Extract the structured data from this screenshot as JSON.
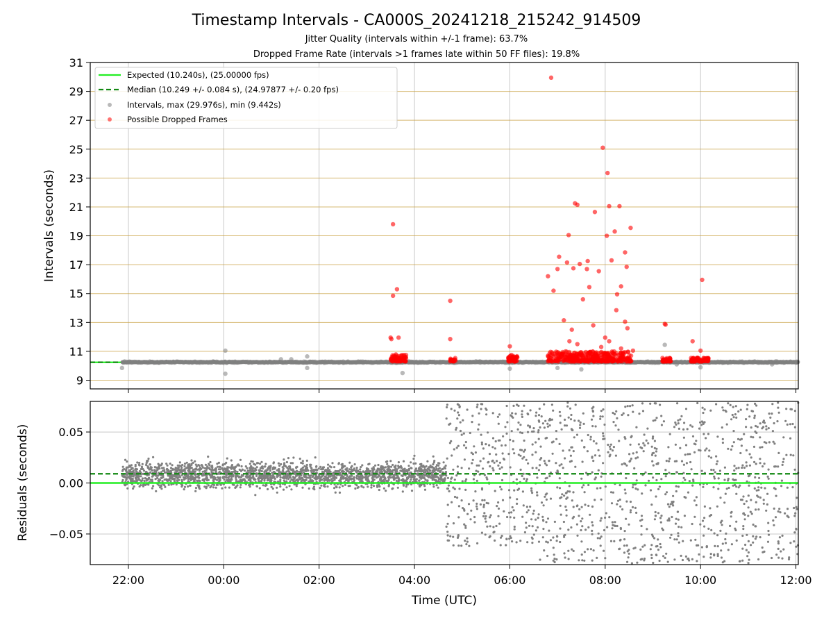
{
  "chart_data": [
    {
      "type": "scatter",
      "title": "Timestamp Intervals - CA000S_20241218_215242_914509",
      "subtitle_1": "Jitter Quality (intervals within +/-1 frame): 63.7%",
      "subtitle_2": "Dropped Frame Rate (intervals >1 frames late within 50 FF files): 19.8%",
      "xlabel": "",
      "ylabel": "Intervals (seconds)",
      "xlim": [
        "21:12",
        "12:03"
      ],
      "ylim": [
        8.4,
        31
      ],
      "yticks": [
        "9",
        "11",
        "13",
        "15",
        "17",
        "19",
        "21",
        "23",
        "25",
        "27",
        "29",
        "31"
      ],
      "grid": true,
      "legend_position": "top-left",
      "legend": [
        "Expected (10.240s), (25.00000 fps)",
        "Median (10.249 +/- 0.084 s), (24.97877 +/- 0.20 fps)",
        "Intervals, max (29.976s), min (9.442s)",
        "Possible Dropped Frames"
      ],
      "expected_interval": 10.24,
      "median_interval": 10.249,
      "series": [
        {
          "name": "Intervals, max (29.976s), min (9.442s)",
          "color": "#808080",
          "band": {
            "x_start": "21:52",
            "x_end": "12:03",
            "center": 10.25,
            "spread": 0.08
          },
          "outliers": [
            {
              "x": "21:52",
              "y": 9.85
            },
            {
              "x": "00:02",
              "y": 11.05
            },
            {
              "x": "00:02",
              "y": 9.45
            },
            {
              "x": "01:12",
              "y": 10.45
            },
            {
              "x": "01:25",
              "y": 10.45
            },
            {
              "x": "01:45",
              "y": 10.65
            },
            {
              "x": "01:45",
              "y": 9.85
            },
            {
              "x": "03:45",
              "y": 9.5
            },
            {
              "x": "06:00",
              "y": 9.8
            },
            {
              "x": "07:00",
              "y": 9.85
            },
            {
              "x": "07:30",
              "y": 9.75
            },
            {
              "x": "09:15",
              "y": 11.45
            },
            {
              "x": "09:30",
              "y": 10.1
            },
            {
              "x": "10:00",
              "y": 9.9
            },
            {
              "x": "11:30",
              "y": 10.1
            }
          ]
        },
        {
          "name": "Possible Dropped Frames",
          "color": "#ff0000",
          "clusters": [
            {
              "x_start": "03:30",
              "x_end": "03:50",
              "y_min": 10.3,
              "y_max": 10.8
            },
            {
              "x_start": "04:45",
              "x_end": "04:52",
              "y_min": 10.3,
              "y_max": 10.55
            },
            {
              "x_start": "05:58",
              "x_end": "06:10",
              "y_min": 10.3,
              "y_max": 10.7
            },
            {
              "x_start": "06:48",
              "x_end": "08:33",
              "y_min": 10.3,
              "y_max": 11.0
            },
            {
              "x_start": "09:12",
              "x_end": "09:23",
              "y_min": 10.3,
              "y_max": 10.55
            },
            {
              "x_start": "09:48",
              "x_end": "10:10",
              "y_min": 10.3,
              "y_max": 10.55
            }
          ],
          "points": [
            {
              "x": "03:33",
              "y": 19.8
            },
            {
              "x": "03:38",
              "y": 15.3
            },
            {
              "x": "03:33",
              "y": 14.85
            },
            {
              "x": "03:30",
              "y": 11.95
            },
            {
              "x": "03:31",
              "y": 11.85
            },
            {
              "x": "03:40",
              "y": 11.95
            },
            {
              "x": "04:45",
              "y": 14.5
            },
            {
              "x": "04:45",
              "y": 11.85
            },
            {
              "x": "06:00",
              "y": 11.35
            },
            {
              "x": "06:02",
              "y": 10.75
            },
            {
              "x": "06:52",
              "y": 29.95
            },
            {
              "x": "06:48",
              "y": 16.2
            },
            {
              "x": "06:55",
              "y": 15.2
            },
            {
              "x": "07:00",
              "y": 16.7
            },
            {
              "x": "07:02",
              "y": 17.55
            },
            {
              "x": "07:08",
              "y": 13.15
            },
            {
              "x": "07:12",
              "y": 17.15
            },
            {
              "x": "07:14",
              "y": 19.05
            },
            {
              "x": "07:18",
              "y": 12.5
            },
            {
              "x": "07:20",
              "y": 16.75
            },
            {
              "x": "07:22",
              "y": 21.25
            },
            {
              "x": "07:25",
              "y": 21.15
            },
            {
              "x": "07:28",
              "y": 17.05
            },
            {
              "x": "07:32",
              "y": 14.6
            },
            {
              "x": "07:37",
              "y": 16.7
            },
            {
              "x": "07:38",
              "y": 17.25
            },
            {
              "x": "07:40",
              "y": 15.45
            },
            {
              "x": "07:45",
              "y": 12.8
            },
            {
              "x": "07:47",
              "y": 20.65
            },
            {
              "x": "07:52",
              "y": 16.55
            },
            {
              "x": "07:57",
              "y": 25.1
            },
            {
              "x": "08:03",
              "y": 23.35
            },
            {
              "x": "08:05",
              "y": 21.05
            },
            {
              "x": "08:02",
              "y": 19.0
            },
            {
              "x": "08:08",
              "y": 17.3
            },
            {
              "x": "08:12",
              "y": 19.3
            },
            {
              "x": "08:14",
              "y": 13.85
            },
            {
              "x": "08:15",
              "y": 14.95
            },
            {
              "x": "08:18",
              "y": 21.05
            },
            {
              "x": "08:20",
              "y": 15.5
            },
            {
              "x": "08:25",
              "y": 17.85
            },
            {
              "x": "08:27",
              "y": 16.85
            },
            {
              "x": "08:25",
              "y": 13.05
            },
            {
              "x": "08:28",
              "y": 12.6
            },
            {
              "x": "08:32",
              "y": 19.55
            },
            {
              "x": "08:00",
              "y": 11.95
            },
            {
              "x": "08:05",
              "y": 11.7
            },
            {
              "x": "07:15",
              "y": 11.7
            },
            {
              "x": "07:25",
              "y": 11.5
            },
            {
              "x": "07:55",
              "y": 11.3
            },
            {
              "x": "08:20",
              "y": 11.2
            },
            {
              "x": "08:35",
              "y": 11.05
            },
            {
              "x": "09:15",
              "y": 12.9
            },
            {
              "x": "09:16",
              "y": 12.85
            },
            {
              "x": "09:50",
              "y": 11.7
            },
            {
              "x": "10:02",
              "y": 15.95
            },
            {
              "x": "10:00",
              "y": 11.05
            }
          ]
        }
      ]
    },
    {
      "type": "scatter",
      "title": "",
      "xlabel": "Time (UTC)",
      "ylabel": "Residuals (seconds)",
      "xlim": [
        "21:12",
        "12:03"
      ],
      "ylim": [
        -0.08,
        0.08
      ],
      "xticks": [
        "22:00",
        "00:00",
        "02:00",
        "04:00",
        "06:00",
        "08:00",
        "10:00",
        "12:00"
      ],
      "yticks": [
        "−0.05",
        "0.00",
        "0.05"
      ],
      "grid": true,
      "expected_residual": 0.0,
      "median_residual": 0.009,
      "series": [
        {
          "name": "",
          "color": "#808080",
          "segments": [
            {
              "x_start": "21:52",
              "x_end": "04:40",
              "center": 0.008,
              "spread": 0.018
            },
            {
              "x_start": "04:40",
              "x_end": "06:38",
              "center": 0.008,
              "spread": 0.05
            },
            {
              "x_start": "06:38",
              "x_end": "12:03",
              "center": 0.005,
              "spread": 0.06
            }
          ]
        }
      ]
    }
  ],
  "colors": {
    "expected_line": "#22ee22",
    "median_line": "#118811",
    "interval_points": "#808080",
    "dropped_points": "#ff0000",
    "gold_grid": "#c8a040",
    "grid": "#c8c8c8"
  }
}
